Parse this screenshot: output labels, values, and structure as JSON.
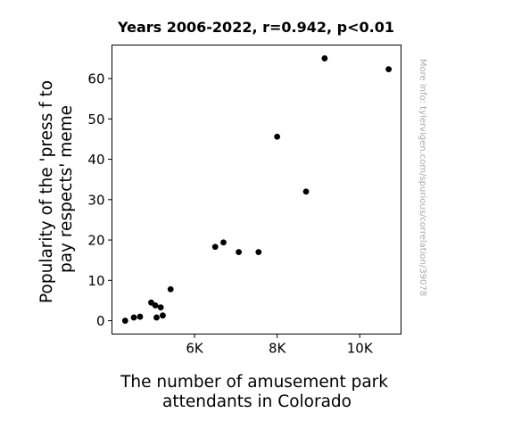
{
  "chart_data": {
    "type": "scatter",
    "title": "Years 2006-2022, r=0.942, p<0.01",
    "xlabel": [
      "The number of amusement park",
      "attendants in Colorado"
    ],
    "ylabel": [
      "Popularity of the 'press f to",
      "pay respects' meme"
    ],
    "xlim": [
      4000,
      11000
    ],
    "ylim": [
      -3.3,
      68.3
    ],
    "xticks": [
      6000,
      8000,
      10000
    ],
    "xtick_labels": [
      "6K",
      "8K",
      "10K"
    ],
    "yticks": [
      0,
      10,
      20,
      30,
      40,
      50,
      60
    ],
    "ytick_labels": [
      "0",
      "10",
      "20",
      "30",
      "40",
      "50",
      "60"
    ],
    "grid": false,
    "point_color": "#000000",
    "points": [
      {
        "x": 4320,
        "y": 0.0
      },
      {
        "x": 4530,
        "y": 0.8
      },
      {
        "x": 4680,
        "y": 1.0
      },
      {
        "x": 4950,
        "y": 4.5
      },
      {
        "x": 5050,
        "y": 3.8
      },
      {
        "x": 5080,
        "y": 0.8
      },
      {
        "x": 5180,
        "y": 3.3
      },
      {
        "x": 5230,
        "y": 1.3
      },
      {
        "x": 5420,
        "y": 7.8
      },
      {
        "x": 6500,
        "y": 18.3
      },
      {
        "x": 6700,
        "y": 19.4
      },
      {
        "x": 7070,
        "y": 17.0
      },
      {
        "x": 7550,
        "y": 17.0
      },
      {
        "x": 8000,
        "y": 45.6
      },
      {
        "x": 8700,
        "y": 32.0
      },
      {
        "x": 9150,
        "y": 65.0
      },
      {
        "x": 10700,
        "y": 62.3
      }
    ]
  },
  "watermark": "More info: tylervigen.com/spurious/correlation/39078"
}
